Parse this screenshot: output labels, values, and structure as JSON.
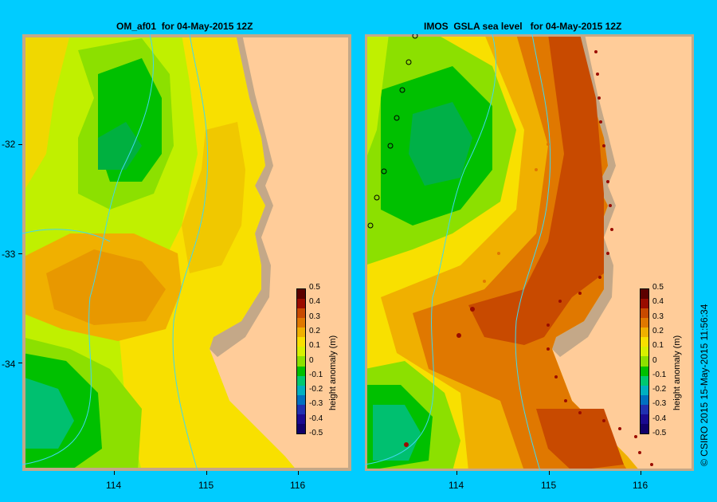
{
  "panels": [
    {
      "title": "OM_af01  for 04-May-2015 12Z"
    },
    {
      "title": "IMOS  GSLA sea level   for 04-May-2015 12Z"
    }
  ],
  "y_ticks": [
    "-32",
    "-33",
    "-34"
  ],
  "x_ticks": [
    "114",
    "115",
    "116"
  ],
  "colorbar": {
    "label": "height anomaly  (m)",
    "ticks": [
      "0.5",
      "0.4",
      "0.3",
      "0.2",
      "0.1",
      "0",
      "-0.1",
      "-0.2",
      "-0.3",
      "-0.4",
      "-0.5"
    ],
    "colors": [
      "#5c0000",
      "#9a0c00",
      "#c84a00",
      "#e07800",
      "#f0b000",
      "#f8e000",
      "#d8f000",
      "#8ce000",
      "#00c000",
      "#00c870",
      "#00b0c0",
      "#0070c0",
      "#2030b0",
      "#1a0a90",
      "#10006a"
    ]
  },
  "credit": "© CSIRO 2015   15-May-2015 11:56:34",
  "colors": {
    "background": "#00ccff",
    "land": "#ffcc99",
    "coast": "#c4a888",
    "isobath": "#40d8f0"
  }
}
